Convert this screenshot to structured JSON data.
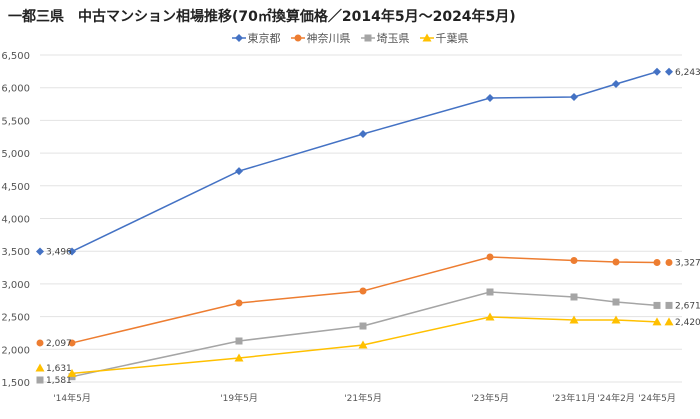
{
  "chart_data": {
    "type": "line",
    "title": "一都三県　中古マンション相場推移(70㎡換算価格／2014年5月～2024年5月)",
    "categories": [
      "'14年5月",
      "'19年5月",
      "'21年5月",
      "'23年5月",
      "'23年11月",
      "'24年2月",
      "'24年5月"
    ],
    "ylim": [
      1500,
      6500
    ],
    "yticks": [
      1500,
      2000,
      2500,
      3000,
      3500,
      4000,
      4500,
      5000,
      5500,
      6000,
      6500
    ],
    "ytick_labels": [
      "1,500",
      "2,000",
      "2,500",
      "3,000",
      "3,500",
      "4,000",
      "4,500",
      "5,000",
      "5,500",
      "6,000",
      "6,500"
    ],
    "grid": true,
    "legend_position": "top",
    "series": [
      {
        "name": "東京都",
        "color": "#4472C4",
        "marker": "diamond",
        "values": [
          3496,
          4725,
          5292,
          5842,
          5858,
          6057,
          6243
        ],
        "start_label": "3,496",
        "end_label": "6,243"
      },
      {
        "name": "神奈川県",
        "color": "#ED7D31",
        "marker": "circle",
        "values": [
          2097,
          2708,
          2892,
          3411,
          3358,
          3335,
          3327
        ],
        "start_label": "2,097",
        "end_label": "3,327"
      },
      {
        "name": "埼玉県",
        "color": "#A5A5A5",
        "marker": "square",
        "values": [
          1581,
          2127,
          2356,
          2876,
          2800,
          2723,
          2671
        ],
        "start_label": "1,581",
        "end_label": "2,671"
      },
      {
        "name": "千葉県",
        "color": "#FFC000",
        "marker": "triangle",
        "values": [
          1631,
          1867,
          2066,
          2494,
          2448,
          2448,
          2420
        ],
        "start_label": "1,631",
        "end_label": "2,420"
      }
    ]
  }
}
